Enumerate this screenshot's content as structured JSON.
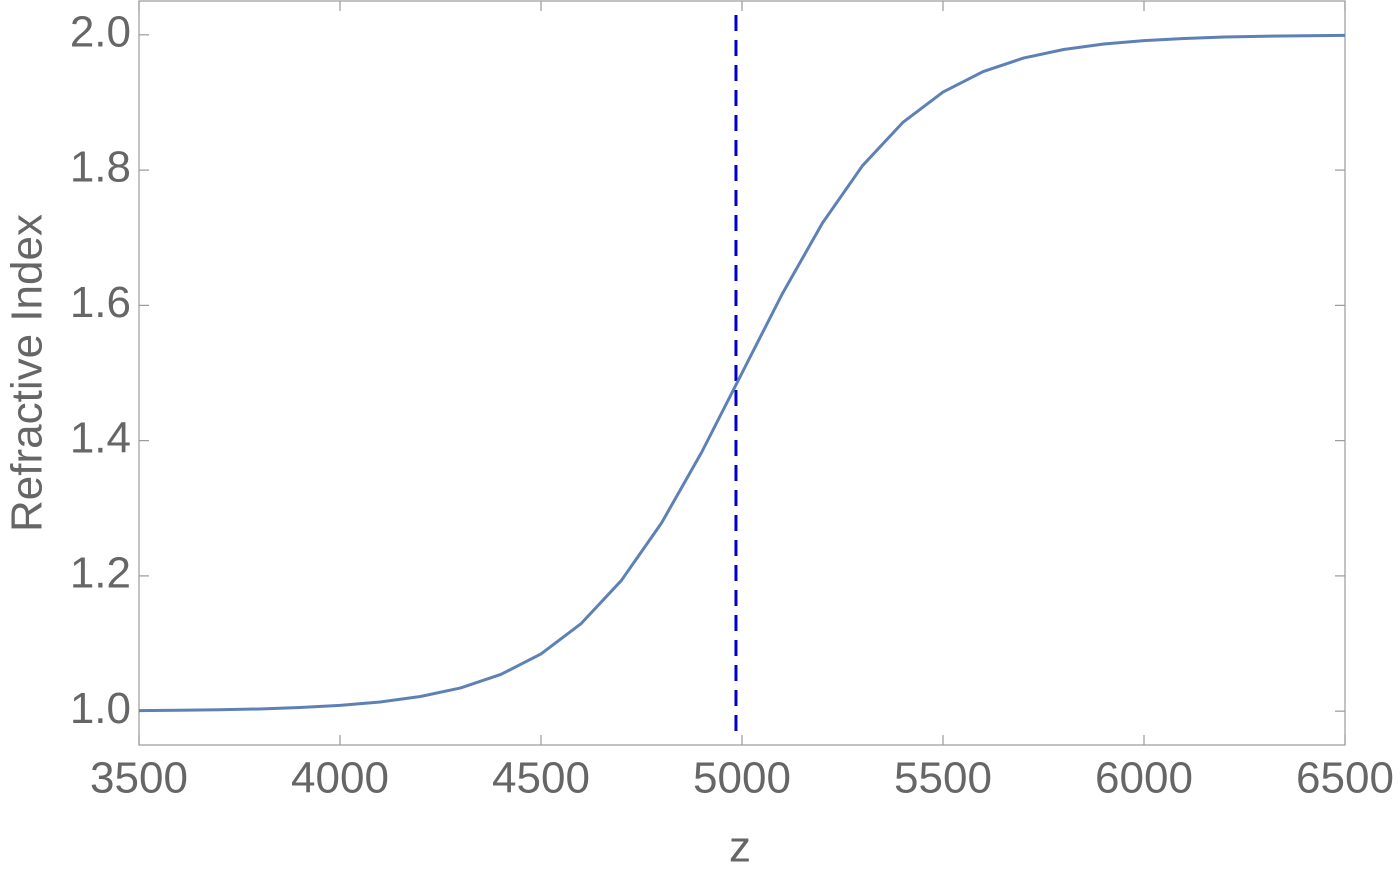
{
  "chart_data": {
    "type": "line",
    "xlabel": "z",
    "ylabel": "Refractive Index",
    "x": [
      3500,
      3600,
      3700,
      3800,
      3900,
      4000,
      4100,
      4200,
      4300,
      4400,
      4500,
      4600,
      4700,
      4800,
      4900,
      5000,
      5100,
      5200,
      5300,
      5400,
      5500,
      5600,
      5700,
      5800,
      5900,
      6000,
      6100,
      6200,
      6300,
      6400,
      6500
    ],
    "series": [
      {
        "color": "#5e81b5",
        "values": [
          1.0008,
          1.0013,
          1.0021,
          1.0033,
          1.0054,
          1.0085,
          1.0136,
          1.0217,
          1.0344,
          1.0543,
          1.0846,
          1.1296,
          1.1933,
          1.2784,
          1.3832,
          1.5,
          1.6168,
          1.7216,
          1.8067,
          1.8704,
          1.9154,
          1.9457,
          1.9656,
          1.9783,
          1.9864,
          1.9915,
          1.9946,
          1.9967,
          1.9979,
          1.9987,
          1.9992
        ]
      }
    ],
    "reference_line": {
      "x": 4985,
      "color": "#0000cc",
      "dashed": true
    },
    "xlim": [
      3500,
      6500
    ],
    "xticks": [
      3500,
      4000,
      4500,
      5000,
      5500,
      6000,
      6500
    ],
    "ylim": [
      0.95,
      2.05
    ],
    "yticks": [
      {
        "value": 1,
        "label": "1.0"
      },
      1.2,
      1.4,
      1.6,
      1.8,
      {
        "value": 2,
        "label": "2.0"
      }
    ]
  }
}
